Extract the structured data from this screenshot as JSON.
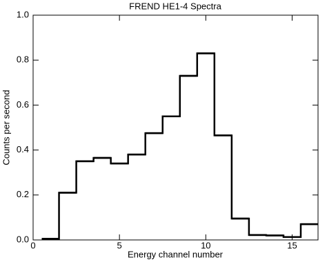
{
  "chart_data": {
    "type": "histogram",
    "title": "FREND HE1-4 Spectra",
    "x_label": "Energy channel number",
    "y_label": "Counts per second",
    "bins": [
      0.5,
      1.5,
      2.5,
      3.5,
      4.5,
      5.5,
      6.5,
      7.5,
      8.5,
      9.5,
      10.5,
      11.5,
      12.5,
      13.5,
      14.5,
      15.5,
      16.5
    ],
    "values": [
      0.005,
      0.21,
      0.35,
      0.365,
      0.34,
      0.38,
      0.475,
      0.55,
      0.73,
      0.83,
      0.465,
      0.095,
      0.022,
      0.02,
      0.013,
      0.07
    ],
    "color": "#000000",
    "xlim": [
      0,
      16.5
    ],
    "xticks": [
      0,
      5,
      10,
      15
    ],
    "ylim": [
      0,
      1.0
    ],
    "yticks": [
      {
        "value": 0,
        "label": "0.0"
      },
      {
        "value": 0.2,
        "label": "0.2"
      },
      {
        "value": 0.4,
        "label": "0.4"
      },
      {
        "value": 0.6,
        "label": "0.6"
      },
      {
        "value": 0.8,
        "label": "0.8"
      },
      {
        "value": 1.0,
        "label": "1.0"
      }
    ]
  }
}
